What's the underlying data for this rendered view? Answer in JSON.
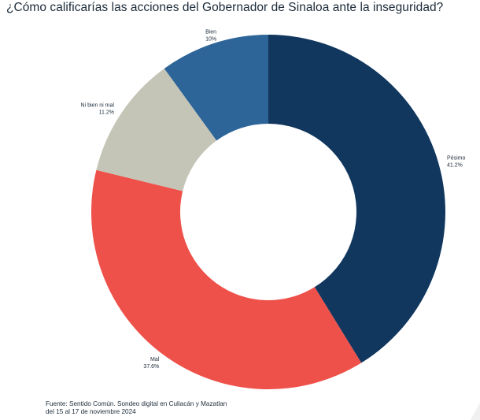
{
  "chart_data": {
    "type": "pie",
    "title": "¿Cómo calificarías las acciones del Gobernador de Sinaloa ante la inseguridad?",
    "donut": true,
    "start": "top, clockwise",
    "slices": [
      {
        "label": "Pésimo",
        "value": 41.2,
        "value_label": "41.2%",
        "color": "#12375f"
      },
      {
        "label": "Mal",
        "value": 37.6,
        "value_label": "37.6%",
        "color": "#ee514a"
      },
      {
        "label": "Ni bien ni mal",
        "value": 11.2,
        "value_label": "11.2%",
        "color": "#c4c5b6"
      },
      {
        "label": "Bien",
        "value": 10,
        "value_label": "10%",
        "color": "#2e6599"
      }
    ]
  },
  "source": {
    "line1": "Fuente: Sentido Común.  Sondeo digital en Culiacán y Mazatlan",
    "line2": "del 15 al 17 de noviembre 2024"
  }
}
